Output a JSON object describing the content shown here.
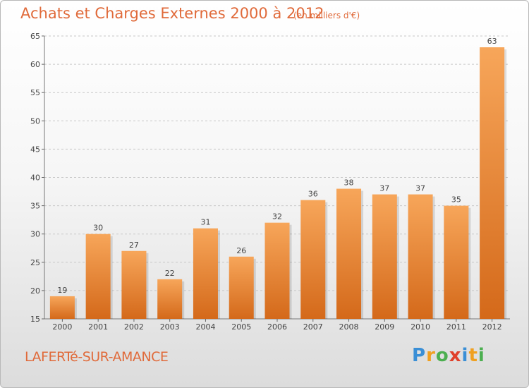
{
  "header": {
    "title": "Achats et Charges Externes 2000 à 2012",
    "subtitle": "(en milliers d'€)"
  },
  "footer": {
    "place": "LAFERTé-SUR-AMANCE",
    "logo_text": "Proxiti",
    "logo_letters": [
      "P",
      "r",
      "o",
      "x",
      "i",
      "t",
      "i"
    ],
    "logo_colors": [
      "#3a8fd6",
      "#f0a020",
      "#4caf50",
      "#e0402a",
      "#3a8fd6",
      "#f0a020",
      "#4caf50"
    ]
  },
  "chart_data": {
    "type": "bar",
    "title": "Achats et Charges Externes 2000 à 2012",
    "subtitle": "(en milliers d'€)",
    "categories": [
      "2000",
      "2001",
      "2002",
      "2003",
      "2004",
      "2005",
      "2006",
      "2007",
      "2008",
      "2009",
      "2010",
      "2011",
      "2012"
    ],
    "values": [
      19,
      30,
      27,
      22,
      31,
      26,
      32,
      36,
      38,
      37,
      37,
      35,
      63
    ],
    "ylim": [
      15,
      65
    ],
    "yticks": [
      15,
      20,
      25,
      30,
      35,
      40,
      45,
      50,
      55,
      60,
      65
    ],
    "grid": true,
    "bar_color_top": "#f7a65a",
    "bar_color_bottom": "#d4691a"
  }
}
